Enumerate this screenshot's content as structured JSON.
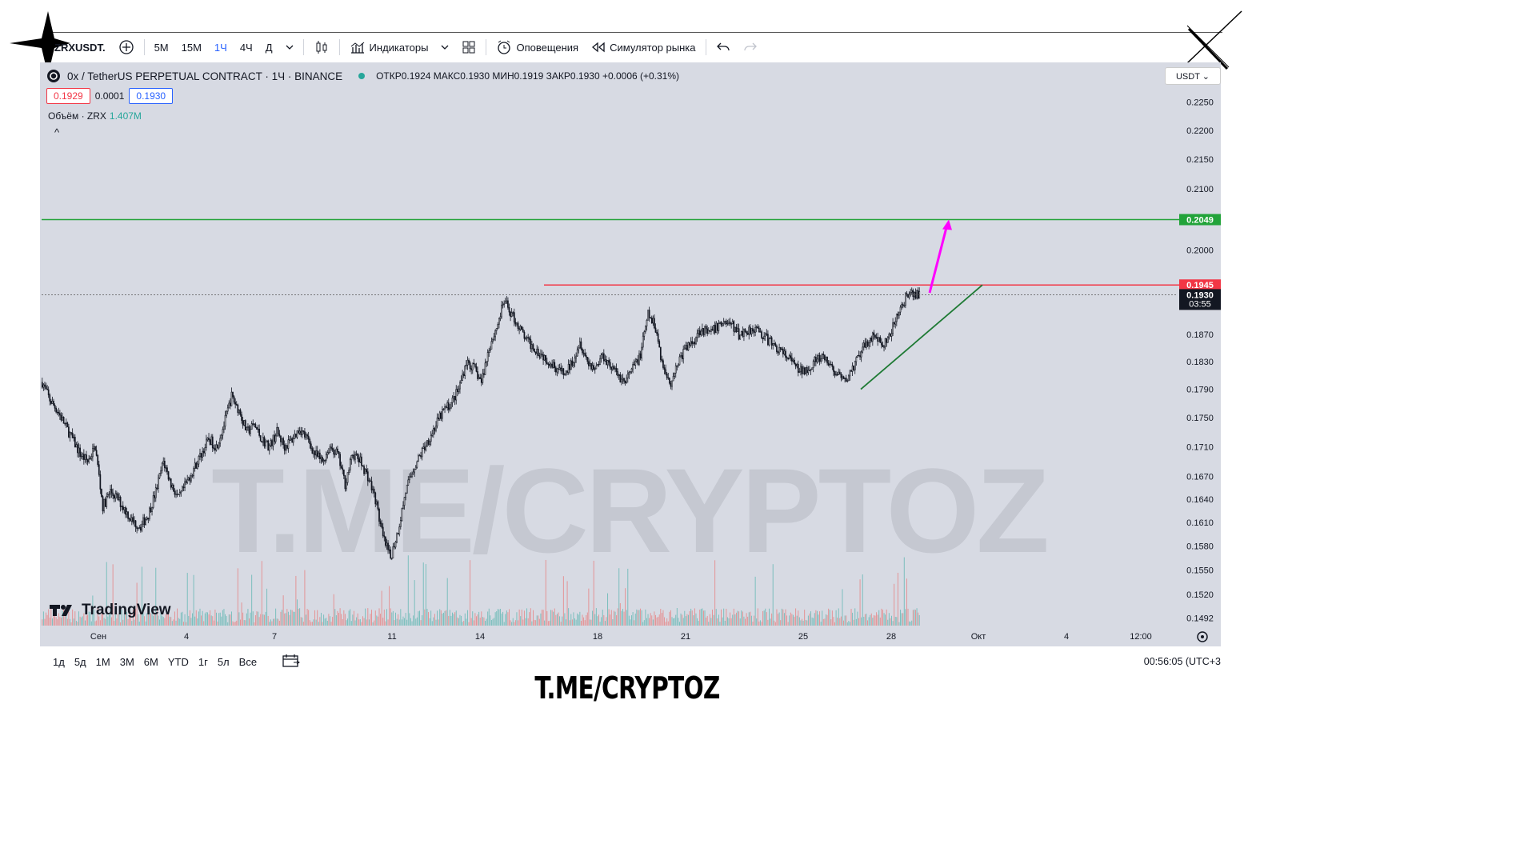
{
  "toolbar": {
    "symbol": "ZRXUSDT.",
    "intervals": [
      "5М",
      "15М",
      "1Ч",
      "4Ч",
      "Д"
    ],
    "active_interval": "1Ч",
    "indicators": "Индикаторы",
    "alerts": "Оповещения",
    "replay": "Симулятор рынка"
  },
  "legend": {
    "title": "0x / TetherUS PERPETUAL CONTRACT · 1Ч · BINANCE",
    "ohlc": "ОТКР0.1924 МАКС0.1930 МИН0.1919 ЗАКР0.1930 +0.0006 (+0.31%)",
    "sell_price": "0.1929",
    "spread": "0.0001",
    "buy_price": "0.1930",
    "volume_label": "Объём · ZRX",
    "volume_value": "1.407M",
    "collapse": "^"
  },
  "currency_button": "USDT ⌄",
  "watermark": "T.ME/CRYPTOZ",
  "tv_logo": "TradingView",
  "bottom": {
    "ranges": [
      "1д",
      "5д",
      "1М",
      "3М",
      "6М",
      "YTD",
      "1г",
      "5л",
      "Все"
    ],
    "clock": "00:56:05 (UTC+3"
  },
  "footer_brand": "T.ME/CRYPTOZ",
  "colors": {
    "resistance": "#f23645",
    "target": "#22a33a",
    "trendline": "#1e7a34",
    "arrow": "#ff00ff",
    "candle": "#131722",
    "vol_up": "#26a69a",
    "vol_down": "#ef5350"
  },
  "chart_data": {
    "type": "line",
    "title": "0x / TetherUS PERPETUAL CONTRACT · 1Ч · BINANCE",
    "x_ticks": [
      "Сен",
      "4",
      "7",
      "11",
      "14",
      "18",
      "21",
      "25",
      "28",
      "Окт",
      "4",
      "12:00"
    ],
    "y_ticks": [
      0.225,
      0.22,
      0.215,
      0.21,
      0.2,
      0.187,
      0.183,
      0.179,
      0.175,
      0.171,
      0.167,
      0.164,
      0.161,
      0.158,
      0.155,
      0.152,
      0.1492
    ],
    "ylim": [
      0.148,
      0.229
    ],
    "y_scale": "log",
    "series": [
      {
        "values": [
          0.18,
          0.1775,
          0.176,
          0.174,
          0.172,
          0.17,
          0.169,
          0.171,
          0.163,
          0.165,
          0.164,
          0.1625,
          0.161,
          0.1605,
          0.162,
          0.165,
          0.169,
          0.166,
          0.164,
          0.166,
          0.168,
          0.17,
          0.172,
          0.171,
          0.174,
          0.178,
          0.176,
          0.173,
          0.174,
          0.172,
          0.171,
          0.173,
          0.171,
          0.172,
          0.1735,
          0.172,
          0.17,
          0.169,
          0.171,
          0.17,
          0.166,
          0.17,
          0.169,
          0.167,
          0.164,
          0.159,
          0.1565,
          0.16,
          0.165,
          0.168,
          0.17,
          0.172,
          0.174,
          0.176,
          0.177,
          0.179,
          0.183,
          0.182,
          0.18,
          0.185,
          0.188,
          0.192,
          0.19,
          0.188,
          0.186,
          0.185,
          0.184,
          0.183,
          0.182,
          0.181,
          0.183,
          0.186,
          0.183,
          0.182,
          0.184,
          0.1825,
          0.181,
          0.18,
          0.182,
          0.184,
          0.19,
          0.188,
          0.182,
          0.18,
          0.183,
          0.185,
          0.186,
          0.188,
          0.187,
          0.188,
          0.189,
          0.1885,
          0.187,
          0.1875,
          0.188,
          0.187,
          0.186,
          0.185,
          0.184,
          0.183,
          0.1815,
          0.182,
          0.183,
          0.1835,
          0.1825,
          0.181,
          0.18,
          0.182,
          0.184,
          0.186,
          0.187,
          0.185,
          0.187,
          0.19,
          0.1925,
          0.193
        ]
      }
    ],
    "annotations": [
      {
        "label": "0.2049",
        "y": 0.2049,
        "kind": "horizontal-line"
      },
      {
        "label": "0.1945",
        "y": 0.1945,
        "kind": "horizontal-line"
      },
      {
        "label": "0.1930",
        "y": 0.193,
        "kind": "last-price",
        "countdown": "03:55"
      }
    ]
  }
}
